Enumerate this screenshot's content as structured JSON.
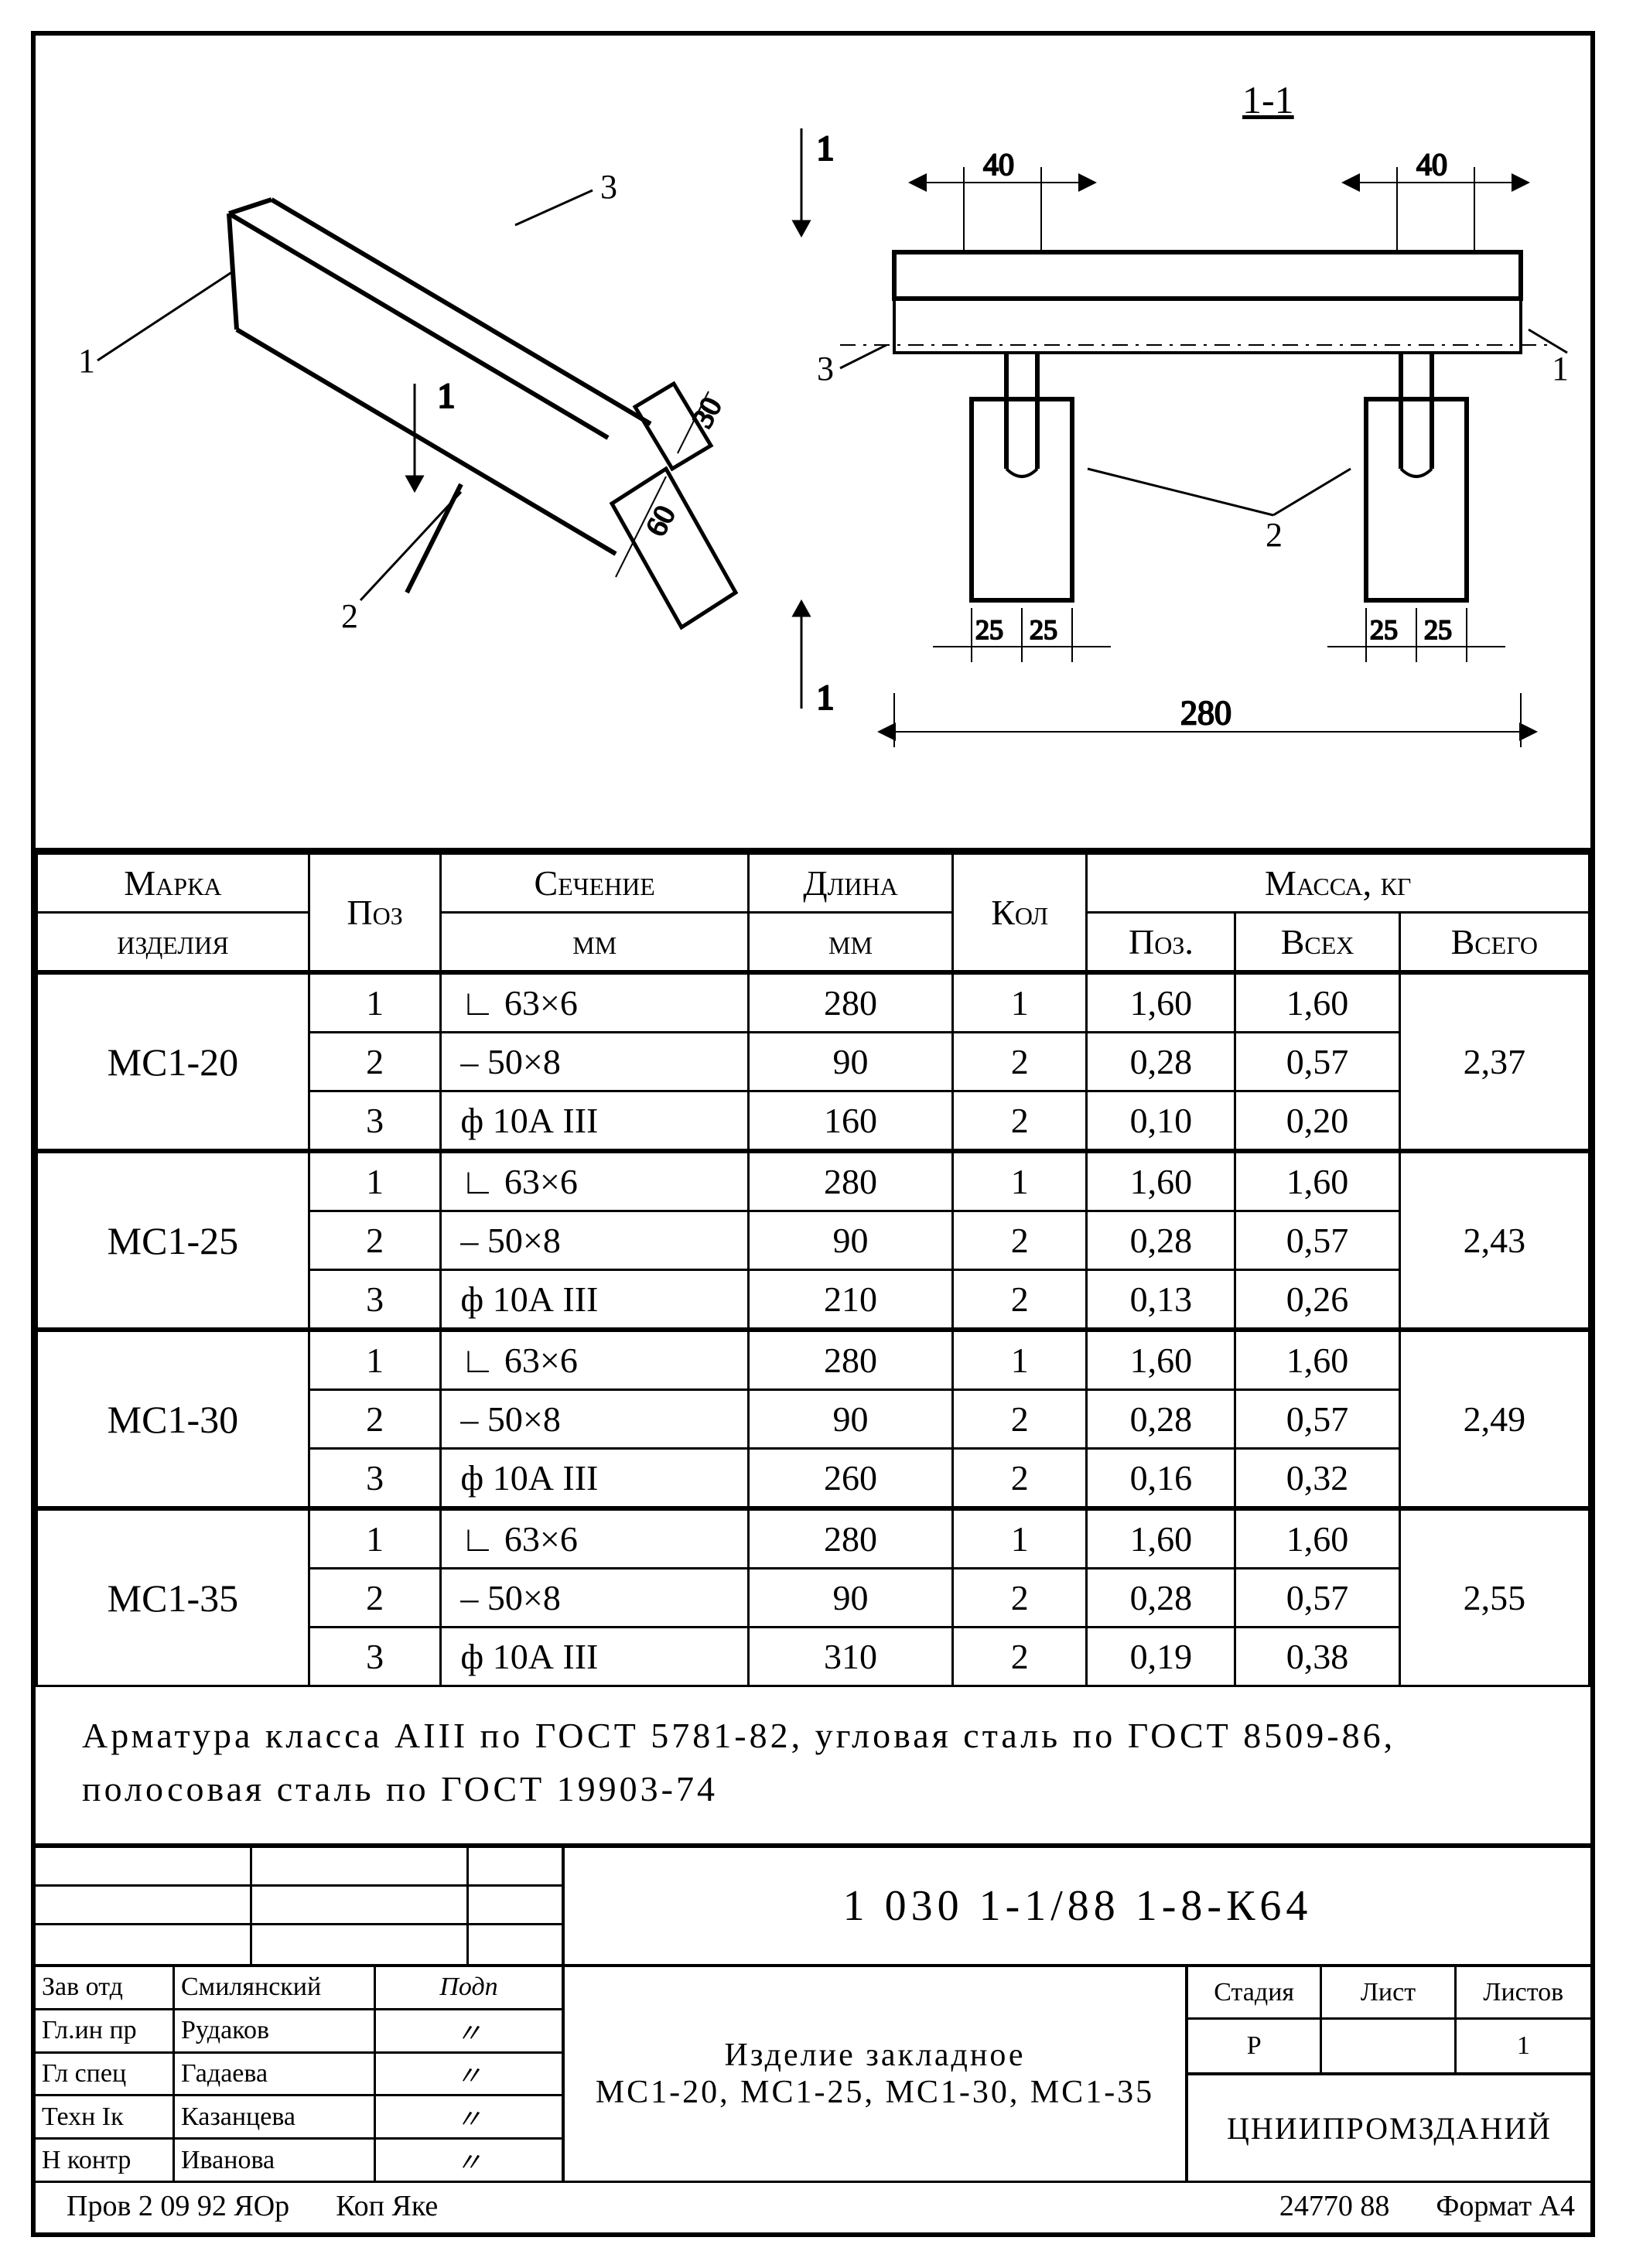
{
  "drawing": {
    "section_label": "1-1",
    "callouts_left": {
      "c1": "1",
      "c2": "2",
      "c3": "3",
      "section_arrow": "1"
    },
    "dims_left": {
      "d30": "30",
      "d60": "60"
    },
    "callouts_right": {
      "c1": "1",
      "c2": "2",
      "c3": "3"
    },
    "dims_right": {
      "d40a": "40",
      "d40b": "40",
      "d25a": "25",
      "d25b": "25",
      "d25c": "25",
      "d25d": "25",
      "d280": "280"
    }
  },
  "table": {
    "headers": {
      "marka": "Марка",
      "izdeliya": "изделия",
      "poz": "Поз",
      "sech": "Сечение",
      "sech_u": "мм",
      "dlina": "Длина",
      "dlina_u": "мм",
      "kol": "Кол",
      "massa": "Масса, кг",
      "mpoz": "Поз.",
      "mvsekh": "Всех",
      "mvsego": "Всего"
    },
    "groups": [
      {
        "label": "МС1-20",
        "total": "2,37",
        "rows": [
          {
            "poz": "1",
            "sech": "∟ 63×6",
            "dl": "280",
            "kol": "1",
            "mp": "1,60",
            "mv": "1,60"
          },
          {
            "poz": "2",
            "sech": "– 50×8",
            "dl": "90",
            "kol": "2",
            "mp": "0,28",
            "mv": "0,57"
          },
          {
            "poz": "3",
            "sech": "ф 10А III",
            "dl": "160",
            "kol": "2",
            "mp": "0,10",
            "mv": "0,20"
          }
        ]
      },
      {
        "label": "МС1-25",
        "total": "2,43",
        "rows": [
          {
            "poz": "1",
            "sech": "∟ 63×6",
            "dl": "280",
            "kol": "1",
            "mp": "1,60",
            "mv": "1,60"
          },
          {
            "poz": "2",
            "sech": "– 50×8",
            "dl": "90",
            "kol": "2",
            "mp": "0,28",
            "mv": "0,57"
          },
          {
            "poz": "3",
            "sech": "ф 10А III",
            "dl": "210",
            "kol": "2",
            "mp": "0,13",
            "mv": "0,26"
          }
        ]
      },
      {
        "label": "МС1-30",
        "total": "2,49",
        "rows": [
          {
            "poz": "1",
            "sech": "∟ 63×6",
            "dl": "280",
            "kol": "1",
            "mp": "1,60",
            "mv": "1,60"
          },
          {
            "poz": "2",
            "sech": "– 50×8",
            "dl": "90",
            "kol": "2",
            "mp": "0,28",
            "mv": "0,57"
          },
          {
            "poz": "3",
            "sech": "ф 10А III",
            "dl": "260",
            "kol": "2",
            "mp": "0,16",
            "mv": "0,32"
          }
        ]
      },
      {
        "label": "МС1-35",
        "total": "2,55",
        "rows": [
          {
            "poz": "1",
            "sech": "∟ 63×6",
            "dl": "280",
            "kol": "1",
            "mp": "1,60",
            "mv": "1,60"
          },
          {
            "poz": "2",
            "sech": "– 50×8",
            "dl": "90",
            "kol": "2",
            "mp": "0,28",
            "mv": "0,57"
          },
          {
            "poz": "3",
            "sech": "ф 10А III",
            "dl": "310",
            "kol": "2",
            "mp": "0,19",
            "mv": "0,38"
          }
        ]
      }
    ]
  },
  "note": "Арматура класса АIII по ГОСТ 5781-82, угловая сталь по ГОСТ 8509-86, полосовая сталь по ГОСТ 19903-74",
  "titleblock": {
    "docnum": "1 030 1-1/88  1-8-К64",
    "title1": "Изделие закладное",
    "title2": "МС1-20, МС1-25, МС1-30, МС1-35",
    "signrow_header": "Подп",
    "signers": [
      {
        "role": "Зав отд",
        "name": "Смилянский",
        "sign": "✓"
      },
      {
        "role": "Гл.ин пр",
        "name": "Рудаков",
        "sign": "〃"
      },
      {
        "role": "Гл спец",
        "name": "Гадаева",
        "sign": "〃"
      },
      {
        "role": "Техн Iк",
        "name": "Казанцева",
        "sign": "〃"
      },
      {
        "role": "Н контр",
        "name": "Иванова",
        "sign": "〃"
      }
    ],
    "stage_h": {
      "stadia": "Стадия",
      "list": "Лист",
      "listov": "Листов"
    },
    "stage_v": {
      "stadia": "Р",
      "list": "",
      "listov": "1"
    },
    "org": "ЦНИИПРОМЗДАНИЙ"
  },
  "footer": {
    "prov": "Пров  2 09 92 ЯОр",
    "kop": "Коп Яке",
    "inv": "24770   88",
    "format": "Формат А4"
  },
  "style": {
    "stroke": "#000000",
    "stroke_thick": 6,
    "stroke_med": 4,
    "stroke_thin": 2,
    "font_drawing": 40
  }
}
